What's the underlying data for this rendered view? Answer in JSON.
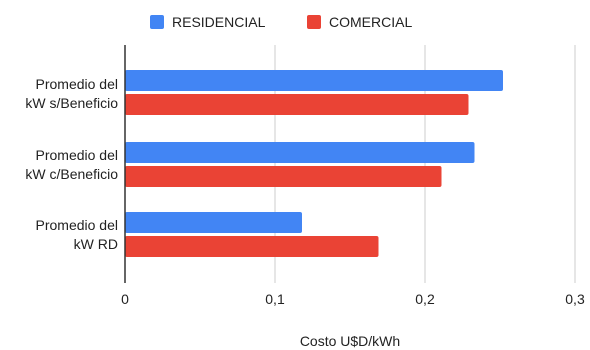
{
  "chart_data": {
    "type": "bar",
    "orientation": "horizontal",
    "categories": [
      [
        "Promedio del",
        "kW s/Beneficio"
      ],
      [
        "Promedio del",
        "kW c/Beneficio"
      ],
      [
        "Promedio del",
        "kW RD"
      ]
    ],
    "series": [
      {
        "name": "RESIDENCIAL",
        "color": "#4285f4",
        "values": [
          0.252,
          0.233,
          0.118
        ]
      },
      {
        "name": "COMERCIAL",
        "color": "#ea4335",
        "values": [
          0.229,
          0.211,
          0.169
        ]
      }
    ],
    "xticks": [
      "0",
      "0,1",
      "0,2",
      "0,3"
    ],
    "xtick_values": [
      0,
      0.1,
      0.2,
      0.3
    ],
    "xlim": [
      0,
      0.3
    ],
    "xlabel": "Costo U$D/kWh",
    "ylabel": "",
    "title": "",
    "grid": true,
    "legend": "top-center"
  }
}
